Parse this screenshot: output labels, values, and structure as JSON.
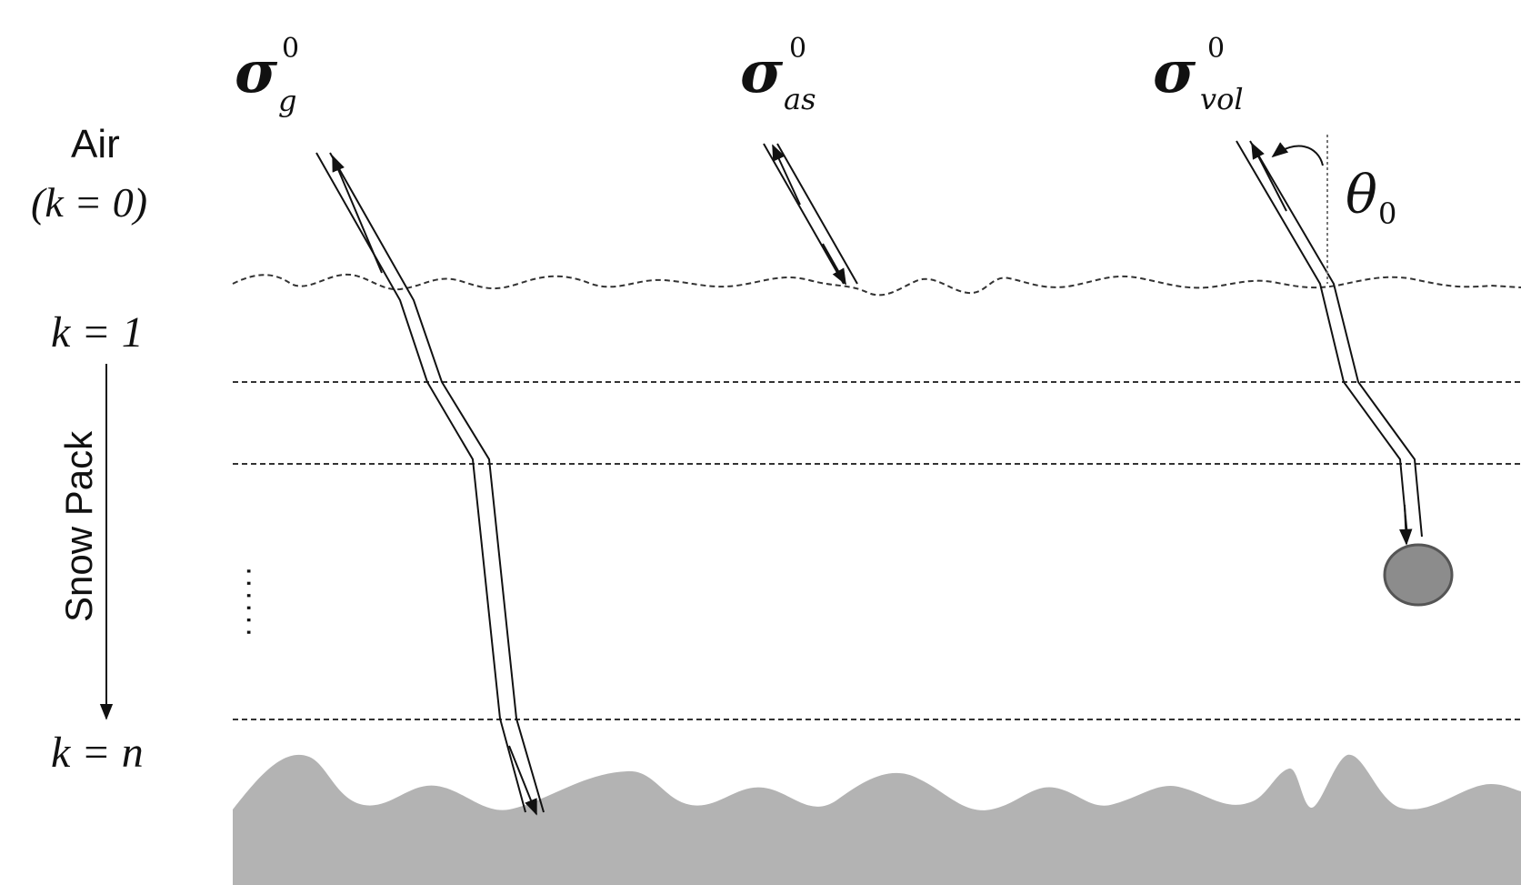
{
  "labels": {
    "air": "Air",
    "air_index": "(k = 0)",
    "layer_first": "k = 1",
    "layer_last": "k = n",
    "snow_pack": "Snow Pack",
    "dots": "......"
  },
  "symbols": {
    "ground": {
      "base": "σ",
      "sup": "0",
      "sub": "g"
    },
    "air_snow": {
      "base": "σ",
      "sup": "0",
      "sub": "as"
    },
    "volume": {
      "base": "σ",
      "sup": "0",
      "sub": "vol"
    },
    "incidence_angle": {
      "base": "θ",
      "sub": "0"
    }
  },
  "colors": {
    "ink": "#111111",
    "ground_fill": "#b3b3b3",
    "particle_fill": "#8c8c8c",
    "particle_stroke": "#555555",
    "layer_line": "#333333"
  }
}
